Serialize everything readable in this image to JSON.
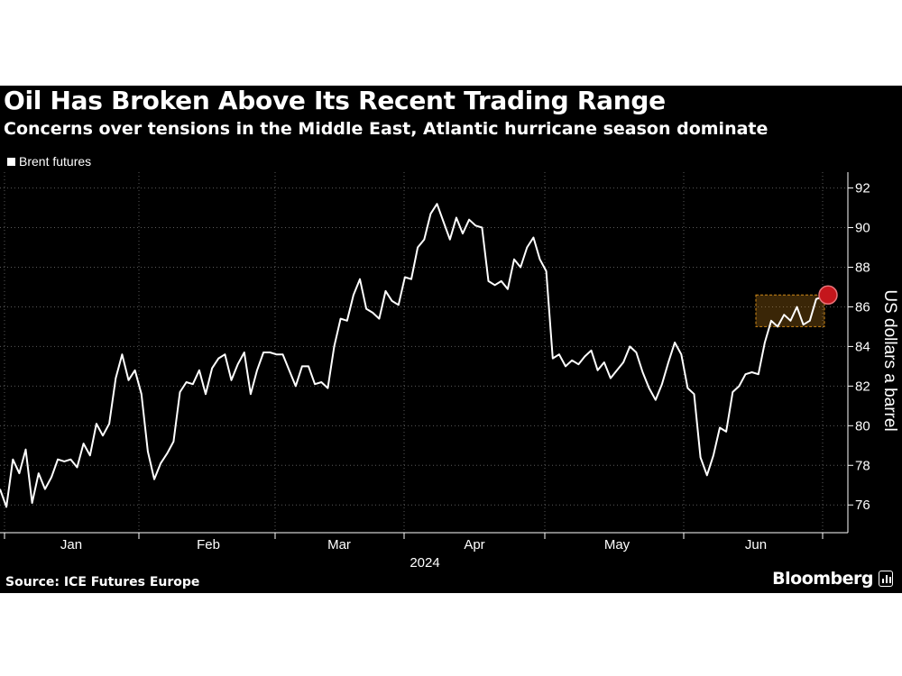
{
  "header": {
    "title": "Oil Has Broken Above Its Recent Trading Range",
    "subtitle": "Concerns over tensions in the Middle East, Atlantic hurricane season dominate"
  },
  "footer": {
    "source": "Source: ICE Futures Europe",
    "brand": "Bloomberg"
  },
  "colors": {
    "background": "#000000",
    "line": "#ffffff",
    "grid": "#5a5a5a",
    "marker": "#c4161c",
    "range_box": "#d08a1a"
  },
  "chart_data": {
    "type": "line",
    "ylabel": "US dollars a barrel",
    "xlabel": "2024",
    "ylim": [
      74.6,
      92.8
    ],
    "yticks": [
      76,
      78,
      80,
      82,
      84,
      86,
      88,
      90,
      92
    ],
    "month_labels": [
      "Jan",
      "Feb",
      "Mar",
      "Apr",
      "May",
      "Jun"
    ],
    "year_label": "2024",
    "grid": true,
    "legend_position": "top-left",
    "series": [
      {
        "name": "Brent futures",
        "values": [
          76.8,
          75.9,
          78.3,
          77.6,
          78.8,
          76.1,
          77.6,
          76.8,
          77.4,
          78.3,
          78.2,
          78.3,
          77.9,
          79.1,
          78.5,
          80.1,
          79.5,
          80.1,
          82.4,
          83.6,
          82.3,
          82.8,
          81.6,
          78.7,
          77.3,
          78.1,
          78.6,
          79.2,
          81.7,
          82.2,
          82.1,
          82.8,
          81.6,
          82.9,
          83.4,
          83.6,
          82.3,
          83.1,
          83.7,
          81.6,
          82.8,
          83.7,
          83.7,
          83.6,
          83.6,
          82.8,
          82.0,
          83.0,
          83.0,
          82.1,
          82.2,
          81.9,
          84.0,
          85.4,
          85.3,
          86.6,
          87.4,
          85.9,
          85.7,
          85.4,
          86.8,
          86.3,
          86.1,
          87.5,
          87.4,
          89.0,
          89.4,
          90.7,
          91.2,
          90.3,
          89.4,
          90.5,
          89.7,
          90.4,
          90.1,
          90.0,
          87.3,
          87.1,
          87.3,
          86.9,
          88.4,
          88.0,
          89.0,
          89.5,
          88.4,
          87.8,
          83.4,
          83.6,
          83.0,
          83.3,
          83.1,
          83.5,
          83.8,
          82.8,
          83.2,
          82.4,
          82.8,
          83.2,
          84.0,
          83.7,
          82.7,
          81.9,
          81.3,
          82.1,
          83.2,
          84.2,
          83.6,
          81.9,
          81.6,
          78.4,
          77.5,
          78.5,
          79.9,
          79.7,
          81.7,
          82.0,
          82.6,
          82.7,
          82.6,
          84.2,
          85.3,
          85.0,
          85.6,
          85.3,
          86.0,
          85.1,
          85.3,
          86.4,
          86.5
        ]
      }
    ],
    "trading_range": [
      85.0,
      86.6
    ],
    "marker_value": 86.6
  }
}
